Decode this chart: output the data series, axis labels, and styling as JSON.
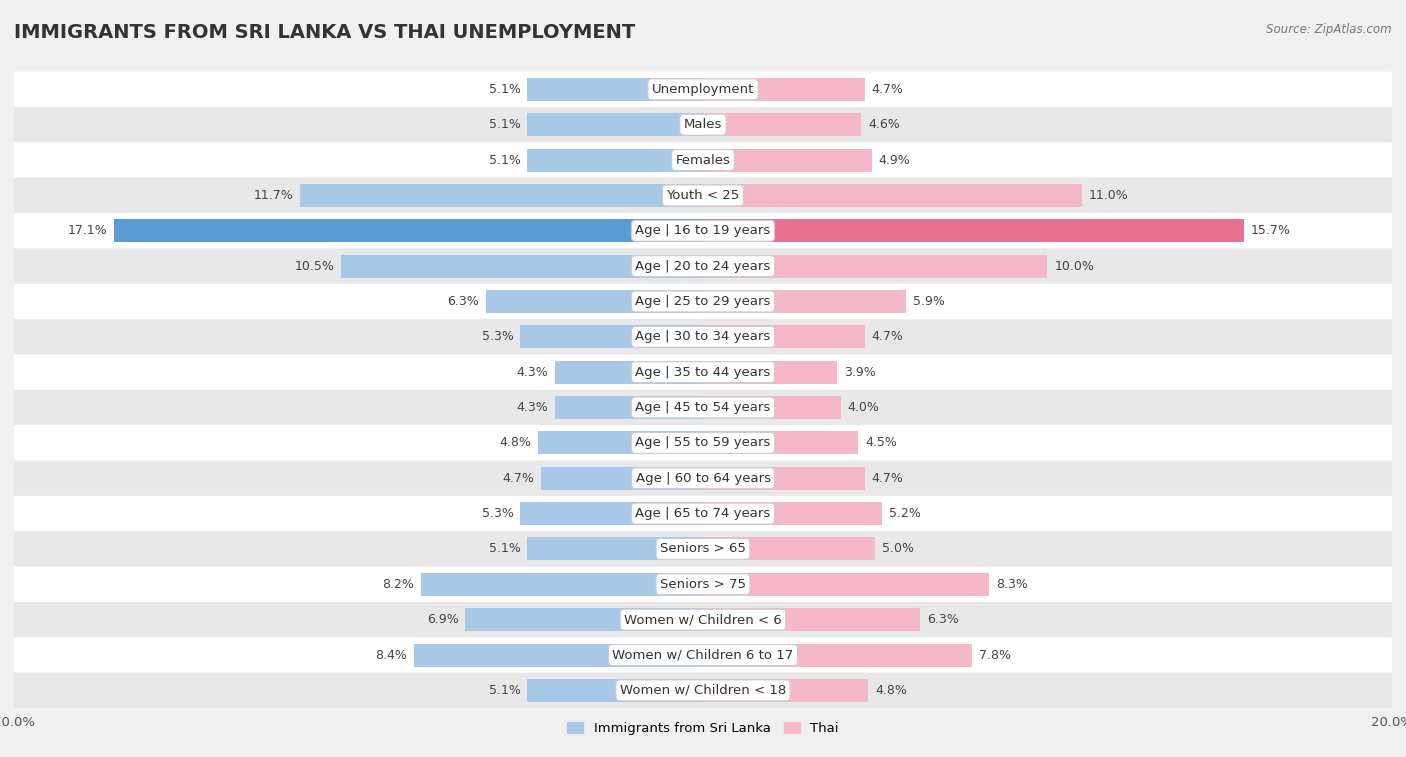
{
  "title": "IMMIGRANTS FROM SRI LANKA VS THAI UNEMPLOYMENT",
  "source": "Source: ZipAtlas.com",
  "categories": [
    "Unemployment",
    "Males",
    "Females",
    "Youth < 25",
    "Age | 16 to 19 years",
    "Age | 20 to 24 years",
    "Age | 25 to 29 years",
    "Age | 30 to 34 years",
    "Age | 35 to 44 years",
    "Age | 45 to 54 years",
    "Age | 55 to 59 years",
    "Age | 60 to 64 years",
    "Age | 65 to 74 years",
    "Seniors > 65",
    "Seniors > 75",
    "Women w/ Children < 6",
    "Women w/ Children 6 to 17",
    "Women w/ Children < 18"
  ],
  "sri_lanka": [
    5.1,
    5.1,
    5.1,
    11.7,
    17.1,
    10.5,
    6.3,
    5.3,
    4.3,
    4.3,
    4.8,
    4.7,
    5.3,
    5.1,
    8.2,
    6.9,
    8.4,
    5.1
  ],
  "thai": [
    4.7,
    4.6,
    4.9,
    11.0,
    15.7,
    10.0,
    5.9,
    4.7,
    3.9,
    4.0,
    4.5,
    4.7,
    5.2,
    5.0,
    8.3,
    6.3,
    7.8,
    4.8
  ],
  "sri_lanka_color_normal": "#a8c8e8",
  "sri_lanka_color_highlight": "#5b9bd5",
  "thai_color_normal": "#f4b8c8",
  "thai_color_highlight": "#e87090",
  "row_colors": [
    "#ffffff",
    "#e8e8e8"
  ],
  "label_bg_color": "#ffffff",
  "label_border_color": "#cccccc",
  "highlight_row": "Age | 16 to 19 years",
  "xlim": 20.0,
  "legend_label_sri_lanka": "Immigrants from Sri Lanka",
  "legend_label_thai": "Thai",
  "legend_color_sri_lanka": "#a8c8e8",
  "legend_color_thai": "#f4b8c8",
  "title_fontsize": 14,
  "label_fontsize": 9.5,
  "value_fontsize": 9
}
